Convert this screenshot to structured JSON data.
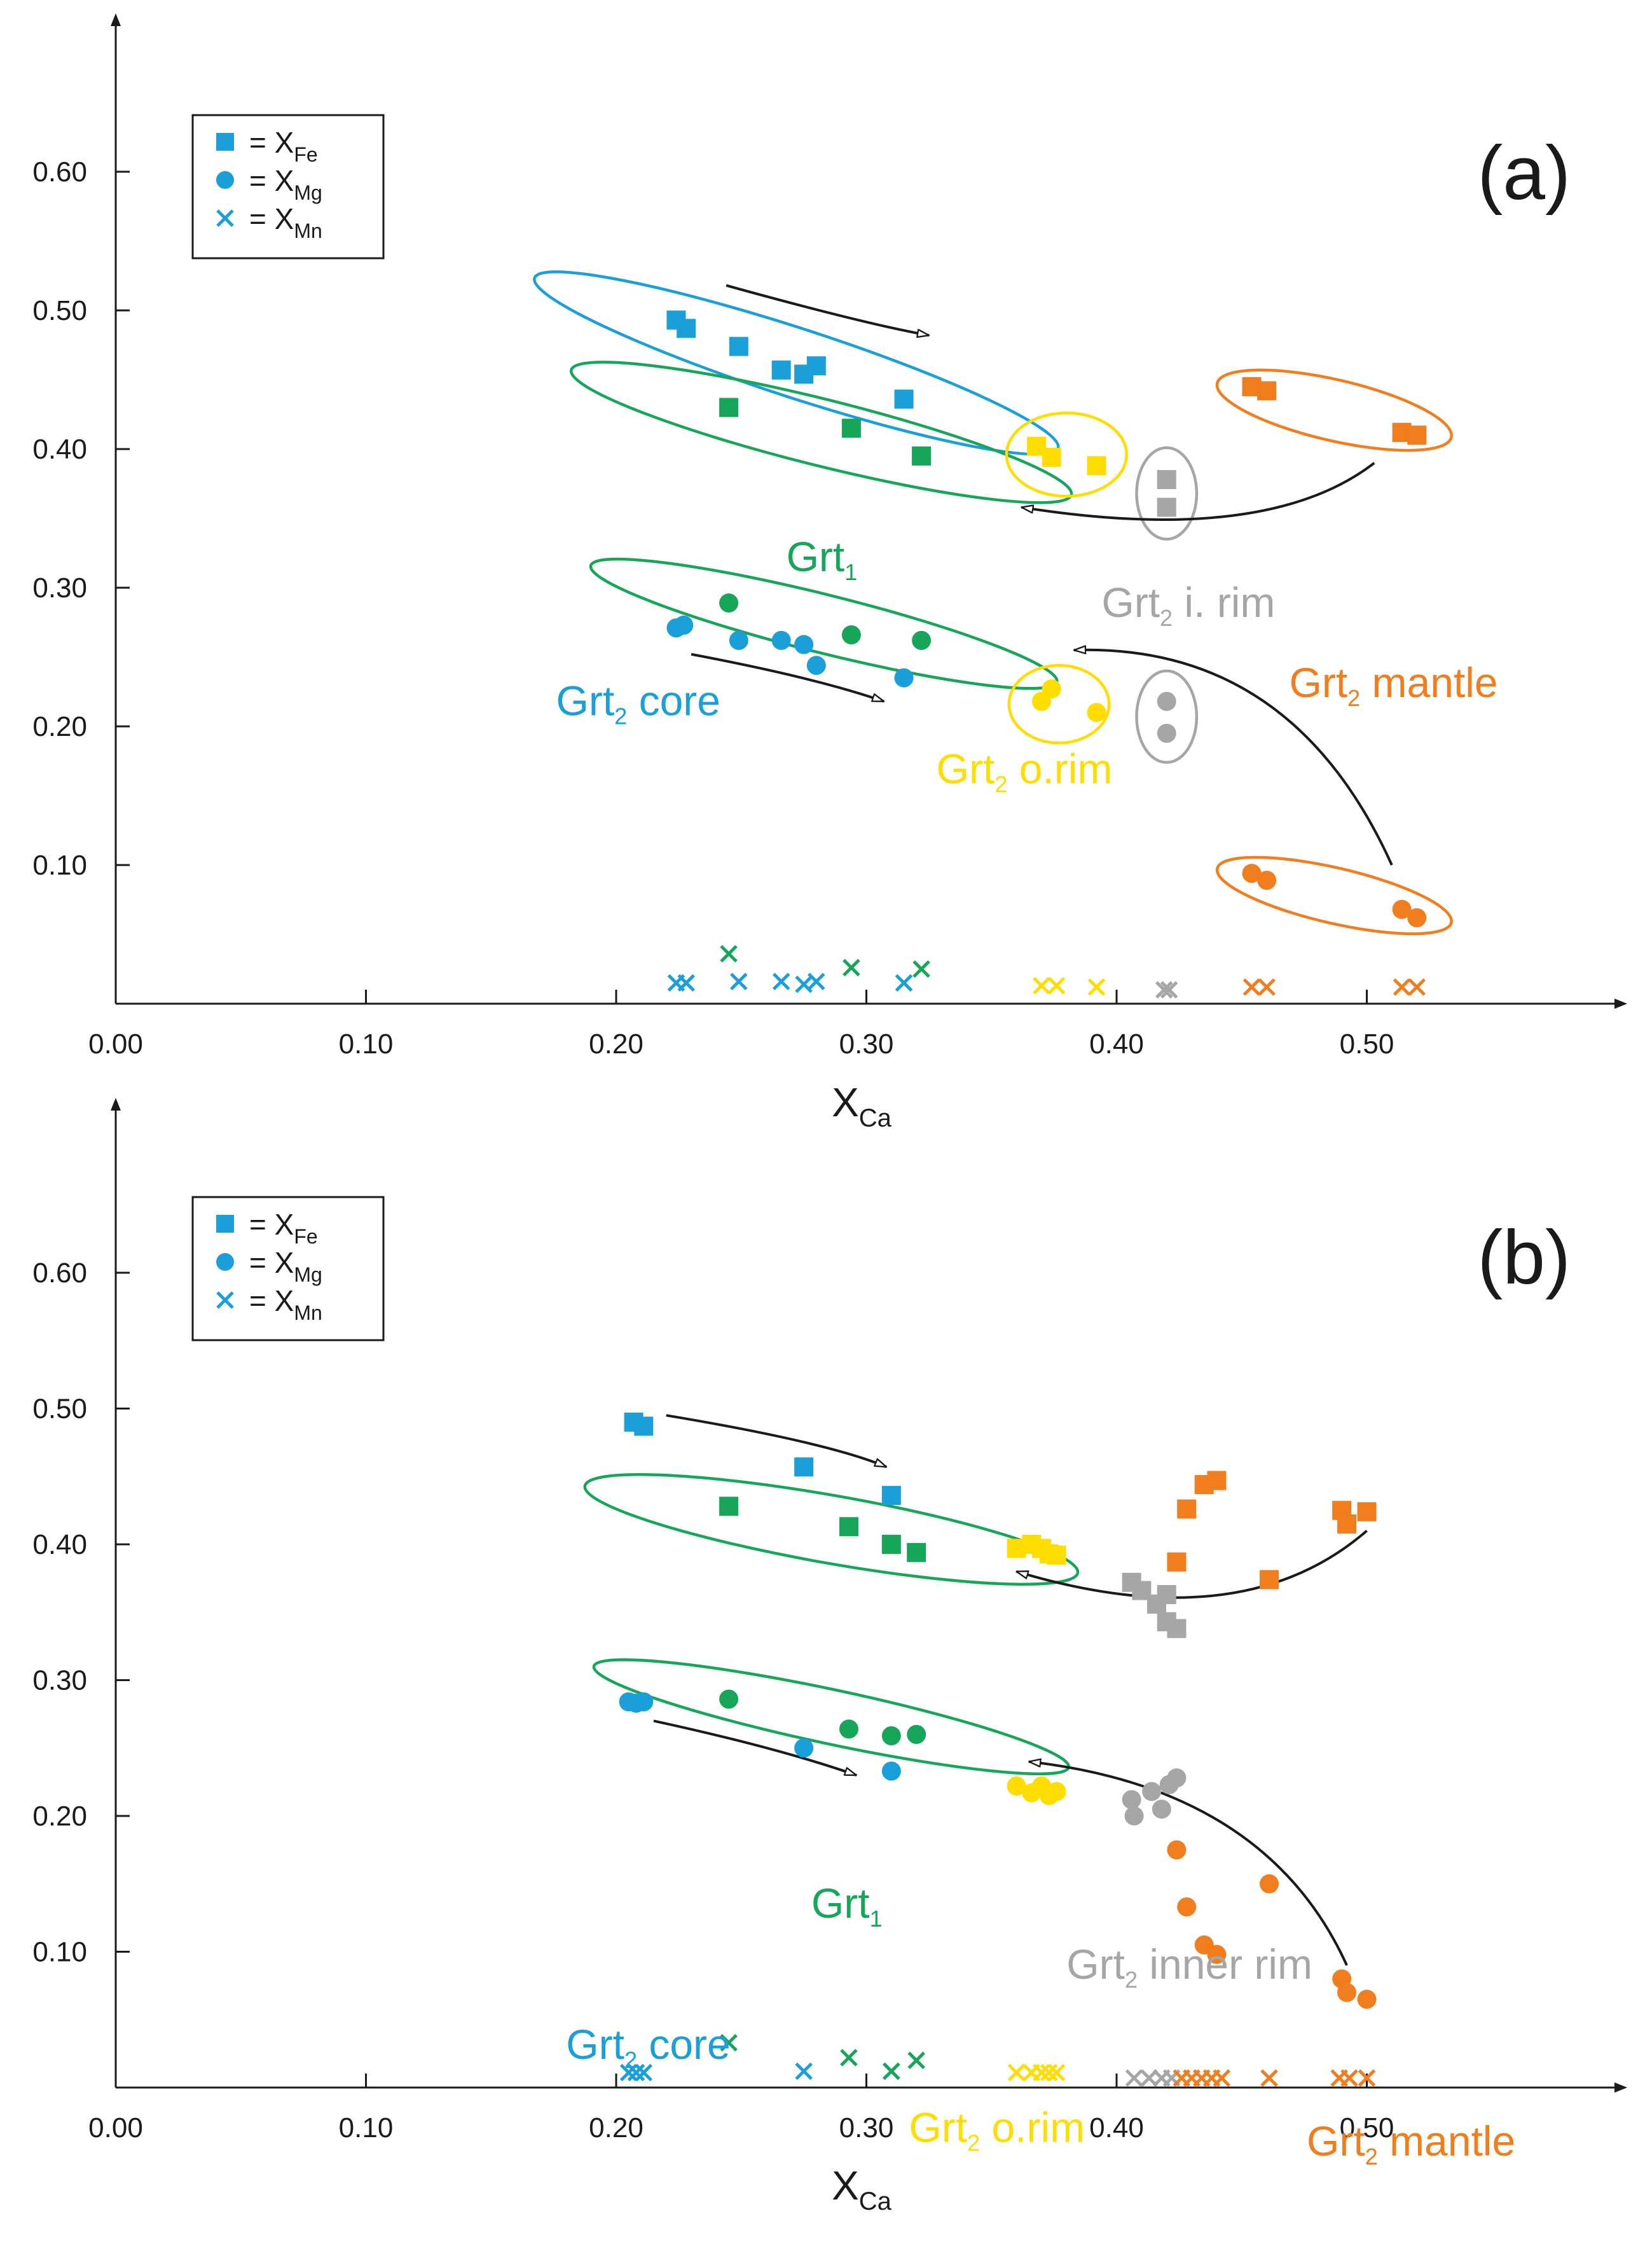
{
  "colors": {
    "core": "#1a9fd8",
    "grt1": "#17a55a",
    "orim": "#ffdd00",
    "irim": "#a6a6a6",
    "mantle": "#f07d1e",
    "axis": "#1a1a1a",
    "arrow": "#1a1a1a"
  },
  "chart_data": [
    {
      "panel": "(a)",
      "type": "scatter",
      "xlabel": "X",
      "xlabel_sub": "Ca",
      "x_ticks": [
        "0.00",
        "0.10",
        "0.20",
        "0.30",
        "0.40",
        "0.50"
      ],
      "y_ticks": [
        "0.10",
        "0.20",
        "0.30",
        "0.40",
        "0.50",
        "0.60"
      ],
      "xlim": [
        0,
        0.6
      ],
      "ylim": [
        0,
        0.7
      ],
      "legend": [
        {
          "marker": "square",
          "label": "= X",
          "sub": "Fe"
        },
        {
          "marker": "circle",
          "label": "= X",
          "sub": "Mg"
        },
        {
          "marker": "cross",
          "label": "= X",
          "sub": "Mn"
        }
      ],
      "series": [
        {
          "name": "Grt2 core",
          "color_key": "core",
          "Fe": [
            [
              0.224,
              0.493
            ],
            [
              0.228,
              0.487
            ],
            [
              0.249,
              0.474
            ],
            [
              0.266,
              0.457
            ],
            [
              0.275,
              0.454
            ],
            [
              0.28,
              0.46
            ],
            [
              0.315,
              0.436
            ]
          ],
          "Mg": [
            [
              0.224,
              0.271
            ],
            [
              0.227,
              0.273
            ],
            [
              0.249,
              0.262
            ],
            [
              0.266,
              0.262
            ],
            [
              0.275,
              0.259
            ],
            [
              0.28,
              0.244
            ],
            [
              0.315,
              0.235
            ]
          ],
          "Mn": [
            [
              0.224,
              0.015
            ],
            [
              0.228,
              0.015
            ],
            [
              0.249,
              0.016
            ],
            [
              0.266,
              0.016
            ],
            [
              0.275,
              0.014
            ],
            [
              0.28,
              0.016
            ],
            [
              0.315,
              0.015
            ]
          ]
        },
        {
          "name": "Grt1",
          "color_key": "grt1",
          "Fe": [
            [
              0.245,
              0.43
            ],
            [
              0.294,
              0.415
            ],
            [
              0.322,
              0.395
            ]
          ],
          "Mg": [
            [
              0.245,
              0.289
            ],
            [
              0.294,
              0.266
            ],
            [
              0.322,
              0.262
            ]
          ],
          "Mn": [
            [
              0.245,
              0.036
            ],
            [
              0.294,
              0.026
            ],
            [
              0.322,
              0.025
            ]
          ]
        },
        {
          "name": "Grt2 o.rim",
          "color_key": "orim",
          "Fe": [
            [
              0.368,
              0.402
            ],
            [
              0.374,
              0.394
            ],
            [
              0.392,
              0.388
            ]
          ],
          "Mg": [
            [
              0.37,
              0.218
            ],
            [
              0.374,
              0.227
            ],
            [
              0.392,
              0.21
            ]
          ],
          "Mn": [
            [
              0.37,
              0.013
            ],
            [
              0.376,
              0.013
            ],
            [
              0.392,
              0.012
            ]
          ]
        },
        {
          "name": "Grt2 i. rim",
          "color_key": "irim",
          "Fe": [
            [
              0.42,
              0.378
            ],
            [
              0.42,
              0.358
            ]
          ],
          "Mg": [
            [
              0.42,
              0.218
            ],
            [
              0.42,
              0.195
            ]
          ],
          "Mn": [
            [
              0.419,
              0.01
            ],
            [
              0.421,
              0.01
            ]
          ]
        },
        {
          "name": "Grt2 mantle",
          "color_key": "mantle",
          "Fe": [
            [
              0.454,
              0.445
            ],
            [
              0.46,
              0.442
            ],
            [
              0.514,
              0.412
            ],
            [
              0.52,
              0.41
            ]
          ],
          "Mg": [
            [
              0.454,
              0.094
            ],
            [
              0.46,
              0.089
            ],
            [
              0.514,
              0.068
            ],
            [
              0.52,
              0.062
            ]
          ],
          "Mn": [
            [
              0.454,
              0.012
            ],
            [
              0.46,
              0.012
            ],
            [
              0.514,
              0.012
            ],
            [
              0.52,
              0.012
            ]
          ]
        }
      ],
      "groups": [
        {
          "color_key": "core",
          "cx": 0.272,
          "cy": 0.462,
          "rx": 0.11,
          "ry": 0.025,
          "angle_deg": 18
        },
        {
          "color_key": "grt1",
          "cx": 0.282,
          "cy": 0.412,
          "rx": 0.103,
          "ry": 0.024,
          "angle_deg": 14
        },
        {
          "color_key": "grt1",
          "cx": 0.283,
          "cy": 0.274,
          "rx": 0.096,
          "ry": 0.021,
          "angle_deg": 14
        },
        {
          "color_key": "orim",
          "cx": 0.38,
          "cy": 0.396,
          "rx": 0.024,
          "ry": 0.03,
          "angle_deg": 0
        },
        {
          "color_key": "orim",
          "cx": 0.377,
          "cy": 0.216,
          "rx": 0.02,
          "ry": 0.028,
          "angle_deg": 0
        },
        {
          "color_key": "irim",
          "cx": 0.42,
          "cy": 0.368,
          "rx": 0.012,
          "ry": 0.033,
          "angle_deg": 0
        },
        {
          "color_key": "irim",
          "cx": 0.42,
          "cy": 0.207,
          "rx": 0.012,
          "ry": 0.033,
          "angle_deg": 0
        },
        {
          "color_key": "mantle",
          "cx": 0.487,
          "cy": 0.428,
          "rx": 0.048,
          "ry": 0.022,
          "angle_deg": 13
        },
        {
          "color_key": "mantle",
          "cx": 0.487,
          "cy": 0.078,
          "rx": 0.048,
          "ry": 0.02,
          "angle_deg": 13
        }
      ],
      "arrows": [
        {
          "start": [
            0.244,
            0.518
          ],
          "control": [
            0.3,
            0.49
          ],
          "end": [
            0.325,
            0.482
          ]
        },
        {
          "start": [
            0.23,
            0.252
          ],
          "control": [
            0.28,
            0.235
          ],
          "end": [
            0.307,
            0.218
          ]
        },
        {
          "start": [
            0.503,
            0.39
          ],
          "control": [
            0.46,
            0.33
          ],
          "end": [
            0.362,
            0.358
          ]
        },
        {
          "start": [
            0.51,
            0.1
          ],
          "control": [
            0.47,
            0.26
          ],
          "end": [
            0.383,
            0.255
          ]
        }
      ],
      "labels": [
        {
          "text": "Grt",
          "sub": "1",
          "after": "",
          "color_key": "grt1",
          "x": 0.268,
          "y": 0.312
        },
        {
          "text": "Grt",
          "sub": "2",
          "after": " core",
          "color_key": "core",
          "x": 0.176,
          "y": 0.208
        },
        {
          "text": "Grt",
          "sub": "2",
          "after": " o.rim",
          "color_key": "orim",
          "x": 0.328,
          "y": 0.159
        },
        {
          "text": "Grt",
          "sub": "2",
          "after": " i. rim",
          "color_key": "irim",
          "x": 0.394,
          "y": 0.279
        },
        {
          "text": "Grt",
          "sub": "2",
          "after": " mantle",
          "color_key": "mantle",
          "x": 0.469,
          "y": 0.221
        }
      ]
    },
    {
      "panel": "(b)",
      "type": "scatter",
      "xlabel": "X",
      "xlabel_sub": "Ca",
      "x_ticks": [
        "0.00",
        "0.10",
        "0.20",
        "0.30",
        "0.40",
        "0.50"
      ],
      "y_ticks": [
        "0.10",
        "0.20",
        "0.30",
        "0.40",
        "0.50",
        "0.60"
      ],
      "xlim": [
        0,
        0.6
      ],
      "ylim": [
        0,
        0.7
      ],
      "legend": [
        {
          "marker": "square",
          "label": "= X",
          "sub": "Fe"
        },
        {
          "marker": "circle",
          "label": "= X",
          "sub": "Mg"
        },
        {
          "marker": "cross",
          "label": "= X",
          "sub": "Mn"
        }
      ],
      "series": [
        {
          "name": "Grt2 core",
          "color_key": "core",
          "Fe": [
            [
              0.207,
              0.49
            ],
            [
              0.211,
              0.487
            ],
            [
              0.275,
              0.457
            ],
            [
              0.31,
              0.436
            ]
          ],
          "Mg": [
            [
              0.205,
              0.284
            ],
            [
              0.208,
              0.283
            ],
            [
              0.211,
              0.284
            ],
            [
              0.275,
              0.25
            ],
            [
              0.31,
              0.233
            ]
          ],
          "Mn": [
            [
              0.205,
              0.011
            ],
            [
              0.208,
              0.011
            ],
            [
              0.211,
              0.011
            ],
            [
              0.275,
              0.012
            ],
            [
              0.31,
              0.012
            ]
          ]
        },
        {
          "name": "Grt1",
          "color_key": "grt1",
          "Fe": [
            [
              0.245,
              0.428
            ],
            [
              0.293,
              0.413
            ],
            [
              0.31,
              0.4
            ],
            [
              0.32,
              0.394
            ]
          ],
          "Mg": [
            [
              0.245,
              0.286
            ],
            [
              0.293,
              0.264
            ],
            [
              0.31,
              0.259
            ],
            [
              0.32,
              0.26
            ]
          ],
          "Mn": [
            [
              0.245,
              0.033
            ],
            [
              0.293,
              0.022
            ],
            [
              0.31,
              0.012
            ],
            [
              0.32,
              0.02
            ]
          ]
        },
        {
          "name": "Grt2 o.rim",
          "color_key": "orim",
          "Fe": [
            [
              0.36,
              0.397
            ],
            [
              0.366,
              0.4
            ],
            [
              0.37,
              0.397
            ],
            [
              0.373,
              0.393
            ],
            [
              0.376,
              0.392
            ]
          ],
          "Mg": [
            [
              0.36,
              0.222
            ],
            [
              0.366,
              0.217
            ],
            [
              0.37,
              0.222
            ],
            [
              0.373,
              0.215
            ],
            [
              0.376,
              0.218
            ]
          ],
          "Mn": [
            [
              0.36,
              0.011
            ],
            [
              0.366,
              0.011
            ],
            [
              0.37,
              0.011
            ],
            [
              0.373,
              0.011
            ],
            [
              0.376,
              0.011
            ]
          ]
        },
        {
          "name": "Grt2 inner rim",
          "color_key": "irim",
          "Fe": [
            [
              0.406,
              0.372
            ],
            [
              0.41,
              0.366
            ],
            [
              0.416,
              0.356
            ],
            [
              0.42,
              0.363
            ],
            [
              0.42,
              0.343
            ],
            [
              0.424,
              0.338
            ]
          ],
          "Mg": [
            [
              0.406,
              0.212
            ],
            [
              0.407,
              0.2
            ],
            [
              0.414,
              0.218
            ],
            [
              0.418,
              0.205
            ],
            [
              0.421,
              0.223
            ],
            [
              0.424,
              0.228
            ]
          ],
          "Mn": [
            [
              0.407,
              0.007
            ],
            [
              0.413,
              0.007
            ],
            [
              0.418,
              0.007
            ],
            [
              0.422,
              0.007
            ]
          ]
        },
        {
          "name": "Grt2 mantle",
          "color_key": "mantle",
          "Fe": [
            [
              0.424,
              0.387
            ],
            [
              0.428,
              0.426
            ],
            [
              0.435,
              0.444
            ],
            [
              0.44,
              0.447
            ],
            [
              0.461,
              0.374
            ],
            [
              0.49,
              0.425
            ],
            [
              0.492,
              0.415
            ],
            [
              0.5,
              0.424
            ]
          ],
          "Mg": [
            [
              0.424,
              0.175
            ],
            [
              0.428,
              0.133
            ],
            [
              0.435,
              0.105
            ],
            [
              0.44,
              0.098
            ],
            [
              0.461,
              0.15
            ],
            [
              0.49,
              0.08
            ],
            [
              0.492,
              0.07
            ],
            [
              0.5,
              0.065
            ]
          ],
          "Mn": [
            [
              0.426,
              0.007
            ],
            [
              0.43,
              0.007
            ],
            [
              0.434,
              0.007
            ],
            [
              0.438,
              0.007
            ],
            [
              0.442,
              0.007
            ],
            [
              0.461,
              0.007
            ],
            [
              0.489,
              0.007
            ],
            [
              0.493,
              0.007
            ],
            [
              0.5,
              0.007
            ]
          ]
        }
      ],
      "groups": [
        {
          "color_key": "grt1",
          "cx": 0.286,
          "cy": 0.411,
          "rx": 0.1,
          "ry": 0.025,
          "angle_deg": 10
        },
        {
          "color_key": "grt1",
          "cx": 0.286,
          "cy": 0.273,
          "rx": 0.097,
          "ry": 0.02,
          "angle_deg": 12
        }
      ],
      "arrows": [
        {
          "start": [
            0.22,
            0.495
          ],
          "control": [
            0.285,
            0.475
          ],
          "end": [
            0.308,
            0.457
          ]
        },
        {
          "start": [
            0.215,
            0.27
          ],
          "control": [
            0.265,
            0.25
          ],
          "end": [
            0.296,
            0.23
          ]
        },
        {
          "start": [
            0.5,
            0.41
          ],
          "control": [
            0.45,
            0.33
          ],
          "end": [
            0.36,
            0.38
          ]
        },
        {
          "start": [
            0.492,
            0.09
          ],
          "control": [
            0.46,
            0.22
          ],
          "end": [
            0.365,
            0.24
          ]
        }
      ],
      "labels": [
        {
          "text": "Grt",
          "sub": "1",
          "after": "",
          "color_key": "grt1",
          "x": 0.278,
          "y": 0.125
        },
        {
          "text": "Grt",
          "sub": "2",
          "after": " core",
          "color_key": "core",
          "x": 0.18,
          "y": 0.021
        },
        {
          "text": "Grt",
          "sub": "2",
          "after": " o.rim",
          "color_key": "orim",
          "x": 0.317,
          "y": -0.04
        },
        {
          "text": "Grt",
          "sub": "2",
          "after": " inner rim",
          "color_key": "irim",
          "x": 0.38,
          "y": 0.08
        },
        {
          "text": "Grt",
          "sub": "2",
          "after": " mantle",
          "color_key": "mantle",
          "x": 0.476,
          "y": -0.05
        }
      ]
    }
  ]
}
